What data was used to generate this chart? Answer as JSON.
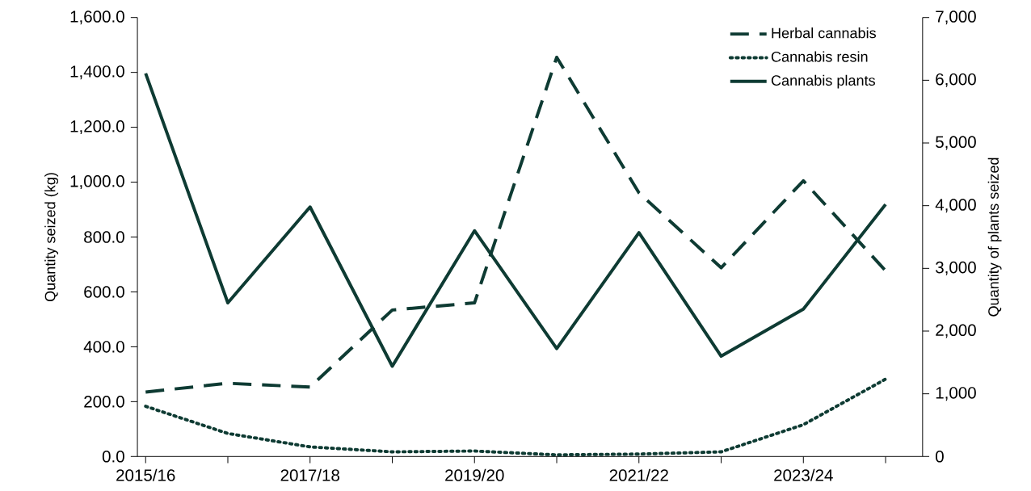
{
  "chart_data": {
    "type": "line",
    "ylabel": "Quantity seized (kg)",
    "y2label": "Quantity of plants seized",
    "categories": [
      "2015/16",
      null,
      "2017/18",
      null,
      "2019/20",
      null,
      "2021/22",
      null,
      "2023/24",
      null
    ],
    "series": [
      {
        "name": "Herbal cannabis",
        "color": "#0e3b33",
        "line_style": "dashed",
        "axis": "y",
        "values": [
          235,
          267,
          253,
          534,
          560,
          1455,
          961,
          688,
          1005,
          677
        ]
      },
      {
        "name": "Cannabis resin",
        "color": "#0e3b33",
        "line_style": "dotted",
        "axis": "y",
        "values": [
          183,
          84,
          35,
          17,
          20,
          6,
          9,
          17,
          116,
          282
        ]
      },
      {
        "name": "Cannabis plants",
        "color": "#0e3b33",
        "line_style": "solid",
        "axis": "y2",
        "values": [
          6110,
          2450,
          3980,
          1440,
          3600,
          1720,
          3570,
          1600,
          2350,
          4020
        ]
      }
    ],
    "ylim": [
      0,
      1600
    ],
    "yticks": [
      {
        "value": 0,
        "label": "0.0"
      },
      {
        "value": 200,
        "label": "200.0"
      },
      {
        "value": 400,
        "label": "400.0"
      },
      {
        "value": 600,
        "label": "600.0"
      },
      {
        "value": 800,
        "label": "800.0"
      },
      {
        "value": 1000,
        "label": "1,000.0"
      },
      {
        "value": 1200,
        "label": "1,200.0"
      },
      {
        "value": 1400,
        "label": "1,400.0"
      },
      {
        "value": 1600,
        "label": "1,600.0"
      }
    ],
    "y2lim": [
      0,
      7000
    ],
    "y2ticks": [
      0,
      {
        "value": 1000,
        "label": "1,000"
      },
      {
        "value": 2000,
        "label": "2,000"
      },
      {
        "value": 3000,
        "label": "3,000"
      },
      {
        "value": 4000,
        "label": "4,000"
      },
      {
        "value": 5000,
        "label": "5,000"
      },
      {
        "value": 6000,
        "label": "6,000"
      },
      {
        "value": 7000,
        "label": "7,000"
      }
    ],
    "legend": "top right",
    "grid": false,
    "marker": "none"
  }
}
